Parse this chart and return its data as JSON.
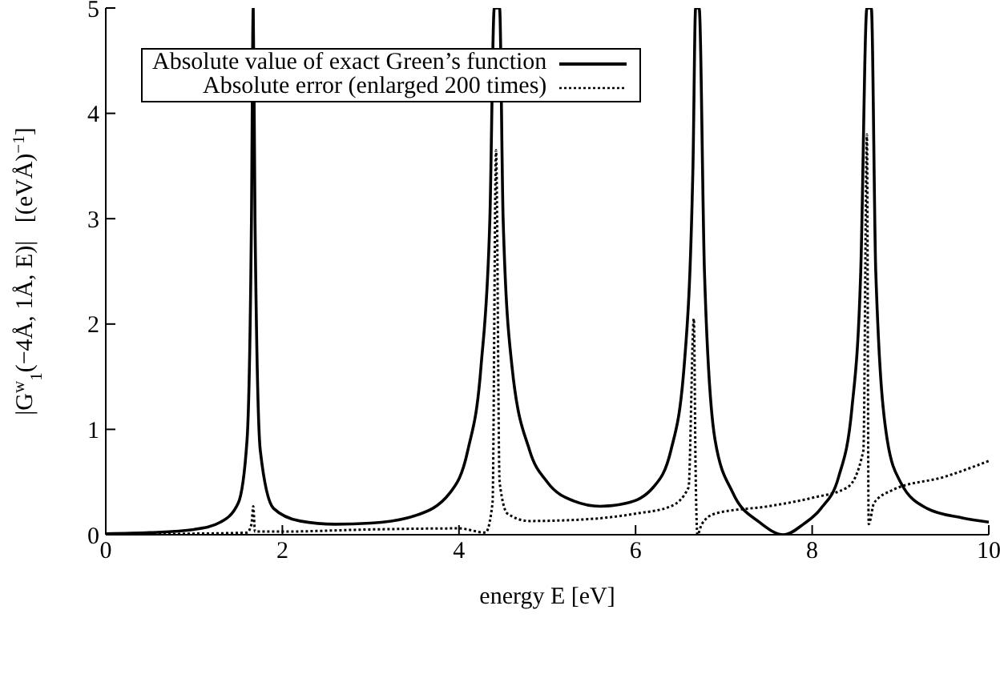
{
  "chart_data": {
    "type": "line",
    "xlabel": "energy E [eV]",
    "ylabel": "|G$^{w}$$_{1}$(−4Å, 1Å, E)|   [(eVÅ)$^{−1}$]",
    "xlim": [
      0,
      10
    ],
    "ylim": [
      0,
      5
    ],
    "xticks": [
      0,
      2,
      4,
      6,
      8,
      10
    ],
    "yticks": [
      0,
      1,
      2,
      3,
      4,
      5
    ],
    "legend": "top left",
    "marker": "none",
    "series": [
      {
        "name": "Absolute value of exact Green’s function",
        "color": "#000000",
        "line_style": "solid",
        "x": [
          0,
          0.5,
          1.0,
          1.3,
          1.5,
          1.6,
          1.65,
          1.67,
          1.69,
          1.75,
          1.9,
          2.2,
          2.6,
          3.0,
          3.5,
          3.9,
          4.1,
          4.25,
          4.35,
          4.4,
          4.46,
          4.5,
          4.6,
          4.8,
          5.0,
          5.3,
          5.6,
          5.9,
          6.2,
          6.4,
          6.55,
          6.65,
          6.68,
          6.72,
          6.78,
          6.9,
          7.1,
          7.4,
          7.68,
          7.9,
          8.1,
          8.3,
          8.45,
          8.55,
          8.62,
          8.67,
          8.72,
          8.85,
          9.0,
          9.3,
          9.7,
          10
        ],
        "values": [
          0.01,
          0.02,
          0.05,
          0.12,
          0.3,
          0.9,
          3,
          5,
          3,
          0.8,
          0.25,
          0.13,
          0.1,
          0.11,
          0.18,
          0.4,
          0.8,
          1.6,
          3,
          5,
          5,
          3,
          1.6,
          0.8,
          0.5,
          0.32,
          0.27,
          0.3,
          0.45,
          0.8,
          1.6,
          3.5,
          5,
          5,
          2.5,
          0.9,
          0.4,
          0.12,
          0,
          0.1,
          0.25,
          0.55,
          1.2,
          2.5,
          5,
          5,
          2.5,
          0.9,
          0.5,
          0.25,
          0.16,
          0.12
        ]
      },
      {
        "name": "Absolute error (enlarged 200 times)",
        "color": "#000000",
        "line_style": "dotted",
        "x": [
          0,
          1,
          1.6,
          1.65,
          1.67,
          1.69,
          2,
          3,
          4,
          4.3,
          4.38,
          4.42,
          4.46,
          4.55,
          4.8,
          5.5,
          6,
          6.4,
          6.6,
          6.66,
          6.68,
          6.7,
          6.75,
          6.9,
          7.5,
          8,
          8.4,
          8.58,
          8.62,
          8.64,
          8.7,
          8.9,
          9.5,
          10
        ],
        "values": [
          0,
          0.01,
          0.02,
          0.1,
          0.27,
          0.03,
          0.03,
          0.05,
          0.06,
          0.02,
          0.3,
          3.65,
          0.5,
          0.2,
          0.13,
          0.15,
          0.2,
          0.27,
          0.45,
          2.05,
          0.6,
          0,
          0.1,
          0.2,
          0.27,
          0.35,
          0.45,
          0.8,
          3.8,
          0.1,
          0.3,
          0.42,
          0.55,
          0.7
        ]
      }
    ]
  }
}
